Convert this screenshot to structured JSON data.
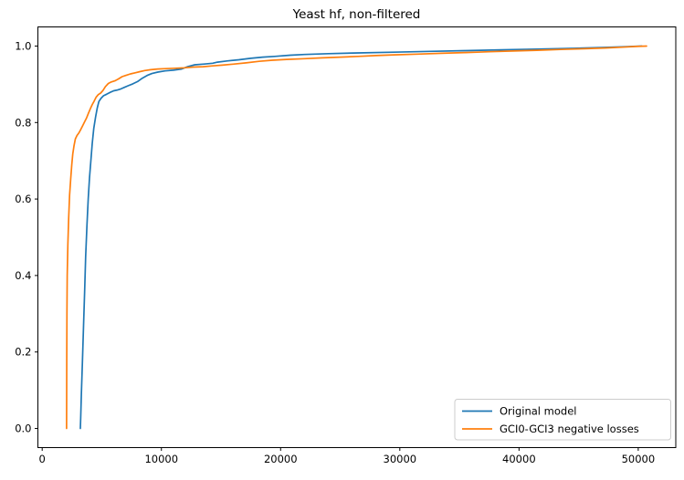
{
  "chart_data": {
    "type": "line",
    "title": "Yeast hf, non-filtered",
    "xlabel": "",
    "ylabel": "",
    "xlim": [
      -360,
      53150
    ],
    "ylim": [
      -0.05,
      1.05
    ],
    "grid": false,
    "legend": {
      "position": "lower right",
      "framed": true
    },
    "xticks": {
      "values": [
        0,
        10000,
        20000,
        30000,
        40000,
        50000
      ],
      "labels": [
        "0",
        "10000",
        "20000",
        "30000",
        "40000",
        "50000"
      ]
    },
    "yticks": {
      "values": [
        0.0,
        0.2,
        0.4,
        0.6,
        0.8,
        1.0
      ],
      "labels": [
        "0.0",
        "0.2",
        "0.4",
        "0.6",
        "0.8",
        "1.0"
      ]
    },
    "series": [
      {
        "name": "Original model",
        "color": "#1f77b4",
        "points": [
          [
            3200,
            0.0
          ],
          [
            3230,
            0.03
          ],
          [
            3290,
            0.09
          ],
          [
            3370,
            0.17
          ],
          [
            3470,
            0.27
          ],
          [
            3560,
            0.36
          ],
          [
            3650,
            0.45
          ],
          [
            3750,
            0.53
          ],
          [
            3860,
            0.6
          ],
          [
            3970,
            0.655
          ],
          [
            4080,
            0.7
          ],
          [
            4200,
            0.745
          ],
          [
            4330,
            0.785
          ],
          [
            4480,
            0.815
          ],
          [
            4620,
            0.838
          ],
          [
            4760,
            0.855
          ],
          [
            4950,
            0.864
          ],
          [
            5150,
            0.87
          ],
          [
            5400,
            0.874
          ],
          [
            5700,
            0.879
          ],
          [
            6000,
            0.883
          ],
          [
            6300,
            0.885
          ],
          [
            6600,
            0.888
          ],
          [
            6900,
            0.892
          ],
          [
            7200,
            0.896
          ],
          [
            7600,
            0.901
          ],
          [
            8000,
            0.907
          ],
          [
            8400,
            0.916
          ],
          [
            8800,
            0.923
          ],
          [
            9200,
            0.928
          ],
          [
            9700,
            0.932
          ],
          [
            10300,
            0.935
          ],
          [
            11000,
            0.937
          ],
          [
            11700,
            0.94
          ],
          [
            12200,
            0.946
          ],
          [
            12800,
            0.951
          ],
          [
            13600,
            0.953
          ],
          [
            14300,
            0.955
          ],
          [
            14700,
            0.958
          ],
          [
            15500,
            0.961
          ],
          [
            16500,
            0.964
          ],
          [
            17500,
            0.968
          ],
          [
            18500,
            0.971
          ],
          [
            19500,
            0.973
          ],
          [
            20800,
            0.976
          ],
          [
            22000,
            0.978
          ],
          [
            24000,
            0.98
          ],
          [
            26500,
            0.982
          ],
          [
            29500,
            0.984
          ],
          [
            32500,
            0.986
          ],
          [
            35500,
            0.988
          ],
          [
            38500,
            0.99
          ],
          [
            41500,
            0.992
          ],
          [
            44500,
            0.994
          ],
          [
            46800,
            0.996
          ],
          [
            48600,
            0.998
          ],
          [
            50300,
            1.0
          ]
        ]
      },
      {
        "name": "GCI0-GCI3 negative losses",
        "color": "#ff7f0e",
        "points": [
          [
            2045,
            0.0
          ],
          [
            2050,
            0.08
          ],
          [
            2058,
            0.18
          ],
          [
            2075,
            0.3
          ],
          [
            2100,
            0.4
          ],
          [
            2150,
            0.48
          ],
          [
            2220,
            0.55
          ],
          [
            2300,
            0.61
          ],
          [
            2400,
            0.655
          ],
          [
            2480,
            0.69
          ],
          [
            2570,
            0.718
          ],
          [
            2670,
            0.74
          ],
          [
            2780,
            0.757
          ],
          [
            2920,
            0.766
          ],
          [
            3080,
            0.773
          ],
          [
            3240,
            0.782
          ],
          [
            3400,
            0.792
          ],
          [
            3560,
            0.802
          ],
          [
            3720,
            0.812
          ],
          [
            3880,
            0.824
          ],
          [
            4040,
            0.836
          ],
          [
            4200,
            0.847
          ],
          [
            4360,
            0.856
          ],
          [
            4520,
            0.866
          ],
          [
            4700,
            0.873
          ],
          [
            4900,
            0.877
          ],
          [
            5100,
            0.884
          ],
          [
            5300,
            0.894
          ],
          [
            5550,
            0.902
          ],
          [
            5800,
            0.906
          ],
          [
            6100,
            0.909
          ],
          [
            6400,
            0.914
          ],
          [
            6700,
            0.92
          ],
          [
            7000,
            0.923
          ],
          [
            7400,
            0.927
          ],
          [
            7800,
            0.93
          ],
          [
            8200,
            0.933
          ],
          [
            8600,
            0.936
          ],
          [
            9100,
            0.938
          ],
          [
            9700,
            0.94
          ],
          [
            10400,
            0.941
          ],
          [
            11100,
            0.942
          ],
          [
            11900,
            0.943
          ],
          [
            12700,
            0.945
          ],
          [
            13500,
            0.946
          ],
          [
            14300,
            0.948
          ],
          [
            15100,
            0.95
          ],
          [
            16100,
            0.953
          ],
          [
            17100,
            0.956
          ],
          [
            18200,
            0.96
          ],
          [
            19300,
            0.963
          ],
          [
            20500,
            0.965
          ],
          [
            22000,
            0.967
          ],
          [
            23500,
            0.969
          ],
          [
            25000,
            0.971
          ],
          [
            26500,
            0.973
          ],
          [
            28000,
            0.975
          ],
          [
            29500,
            0.977
          ],
          [
            31500,
            0.979
          ],
          [
            33500,
            0.981
          ],
          [
            35500,
            0.983
          ],
          [
            37500,
            0.985
          ],
          [
            39500,
            0.987
          ],
          [
            41500,
            0.989
          ],
          [
            43500,
            0.991
          ],
          [
            45500,
            0.993
          ],
          [
            47200,
            0.995
          ],
          [
            48700,
            0.997
          ],
          [
            49800,
            0.999
          ],
          [
            50700,
            1.0
          ]
        ]
      }
    ]
  },
  "colors": {
    "spine": "#000000",
    "background": "#ffffff",
    "legend_border": "#cccccc"
  }
}
